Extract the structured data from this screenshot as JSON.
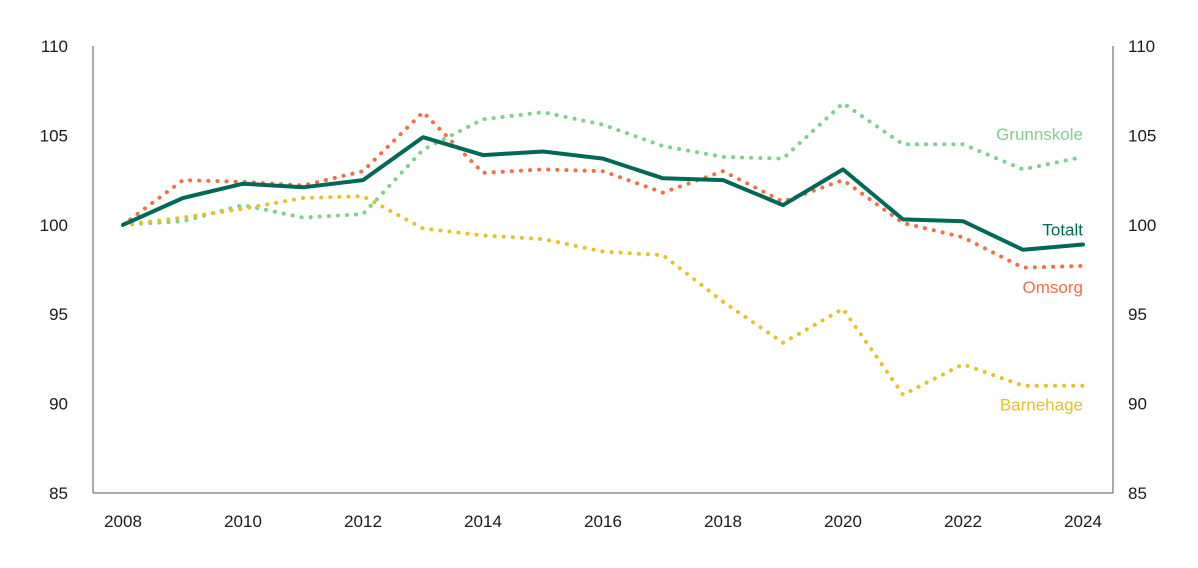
{
  "chart_data": {
    "type": "line",
    "x": [
      2008,
      2009,
      2010,
      2011,
      2012,
      2013,
      2014,
      2015,
      2016,
      2017,
      2018,
      2019,
      2020,
      2021,
      2022,
      2023,
      2024
    ],
    "x_ticks": [
      2008,
      2010,
      2012,
      2014,
      2016,
      2018,
      2020,
      2022,
      2024
    ],
    "ylim": [
      85,
      110
    ],
    "y_ticks": [
      85,
      90,
      95,
      100,
      105,
      110
    ],
    "y_axis_both_sides": true,
    "grid": false,
    "legend": "inline labels at right end of lines",
    "series": [
      {
        "name": "Totalt",
        "style": "solid",
        "color": "#006856",
        "values": [
          100.0,
          101.5,
          102.3,
          102.1,
          102.5,
          104.9,
          103.9,
          104.1,
          103.7,
          102.6,
          102.5,
          101.1,
          103.1,
          100.3,
          100.2,
          98.6,
          98.9
        ]
      },
      {
        "name": "Grunnskole",
        "style": "dotted",
        "color": "#7fcf8f",
        "values": [
          100.0,
          100.2,
          101.1,
          100.4,
          100.6,
          104.2,
          105.9,
          106.3,
          105.6,
          104.4,
          103.8,
          103.7,
          106.8,
          104.5,
          104.5,
          103.1,
          103.8
        ]
      },
      {
        "name": "Omsorg",
        "style": "dotted",
        "color": "#f26e47",
        "values": [
          100.0,
          102.5,
          102.4,
          102.2,
          103.0,
          106.3,
          102.9,
          103.1,
          103.0,
          101.8,
          103.0,
          101.3,
          102.5,
          100.1,
          99.3,
          97.6,
          97.7
        ]
      },
      {
        "name": "Barnehage",
        "style": "dotted",
        "color": "#e6c229",
        "values": [
          100.0,
          100.4,
          100.9,
          101.5,
          101.6,
          99.8,
          99.4,
          99.2,
          98.5,
          98.3,
          95.7,
          93.4,
          95.3,
          90.5,
          92.2,
          91.0,
          91.0
        ]
      }
    ]
  }
}
